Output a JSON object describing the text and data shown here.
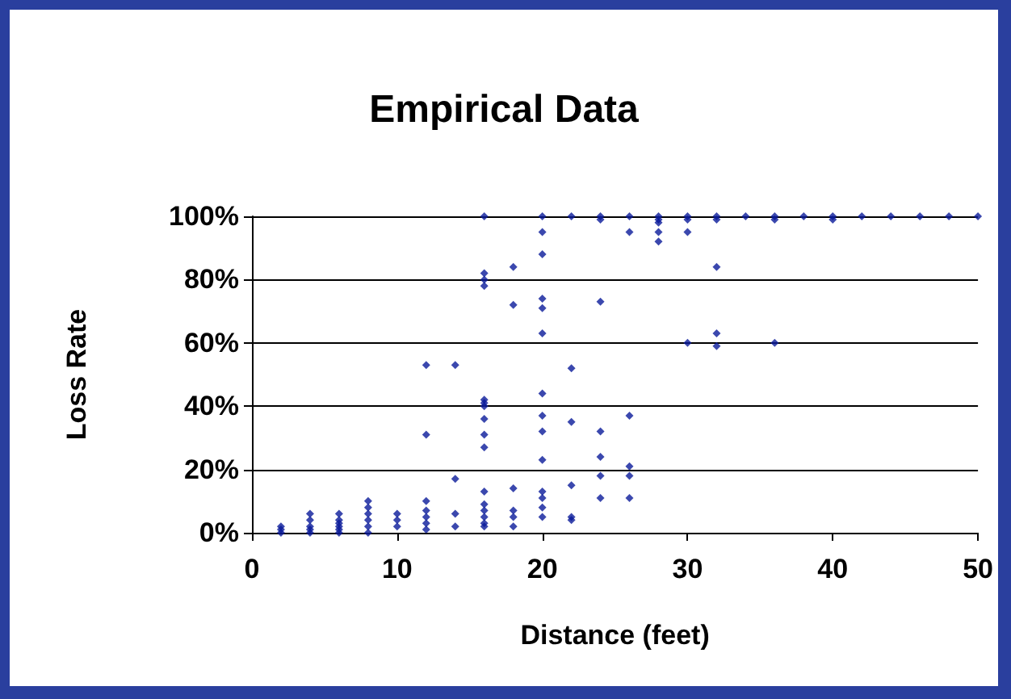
{
  "chart_data": {
    "type": "scatter",
    "title": "Empirical Data",
    "xlabel": "Distance (feet)",
    "ylabel": "Loss Rate",
    "series": [
      {
        "color": "#0a1a9a",
        "x": [
          2,
          2,
          2,
          4,
          4,
          4,
          4,
          4,
          6,
          6,
          6,
          6,
          6,
          6,
          8,
          8,
          8,
          8,
          8,
          8,
          10,
          10,
          10,
          12,
          12,
          12,
          12,
          12,
          12,
          12,
          14,
          14,
          14,
          14,
          16,
          16,
          16,
          16,
          16,
          16,
          16,
          16,
          16,
          16,
          16,
          16,
          16,
          16,
          16,
          16,
          18,
          18,
          18,
          18,
          18,
          18,
          20,
          20,
          20,
          20,
          20,
          20,
          20,
          20,
          20,
          20,
          20,
          20,
          20,
          20,
          22,
          22,
          22,
          22,
          22,
          22,
          24,
          24,
          24,
          24,
          24,
          24,
          24,
          26,
          26,
          26,
          26,
          26,
          26,
          28,
          28,
          28,
          28,
          28,
          30,
          30,
          30,
          30,
          32,
          32,
          32,
          32,
          32,
          34,
          36,
          36,
          36,
          38,
          40,
          40,
          42,
          44,
          46,
          48,
          50
        ],
        "values": [
          0,
          1,
          2,
          0,
          1,
          2,
          4,
          6,
          0,
          1,
          2,
          3,
          4,
          6,
          0,
          2,
          4,
          6,
          8,
          10,
          2,
          4,
          6,
          1,
          3,
          5,
          7,
          10,
          31,
          53,
          2,
          6,
          17,
          53,
          100,
          82,
          80,
          78,
          42,
          41,
          40,
          36,
          31,
          27,
          13,
          9,
          7,
          5,
          3,
          2,
          84,
          72,
          14,
          7,
          5,
          2,
          100,
          95,
          88,
          74,
          71,
          63,
          44,
          37,
          32,
          23,
          13,
          11,
          8,
          5,
          100,
          52,
          35,
          15,
          5,
          4,
          100,
          99,
          73,
          32,
          24,
          18,
          11,
          100,
          95,
          37,
          21,
          18,
          11,
          100,
          99,
          98,
          95,
          92,
          100,
          99,
          95,
          60,
          100,
          99,
          84,
          63,
          59,
          100,
          100,
          99,
          60,
          100,
          100,
          99,
          100,
          100,
          100,
          100,
          100
        ]
      }
    ],
    "xlim": [
      0,
      50
    ],
    "xticks": [
      0,
      10,
      20,
      30,
      40,
      50
    ],
    "ylim": [
      0,
      100
    ],
    "yticks": [
      {
        "value": 0,
        "label": "0%"
      },
      {
        "value": 20,
        "label": "20%"
      },
      {
        "value": 40,
        "label": "40%"
      },
      {
        "value": 60,
        "label": "60%"
      },
      {
        "value": 80,
        "label": "80%"
      },
      {
        "value": 100,
        "label": "100%"
      }
    ],
    "grid": "y",
    "marker": "diamond"
  }
}
